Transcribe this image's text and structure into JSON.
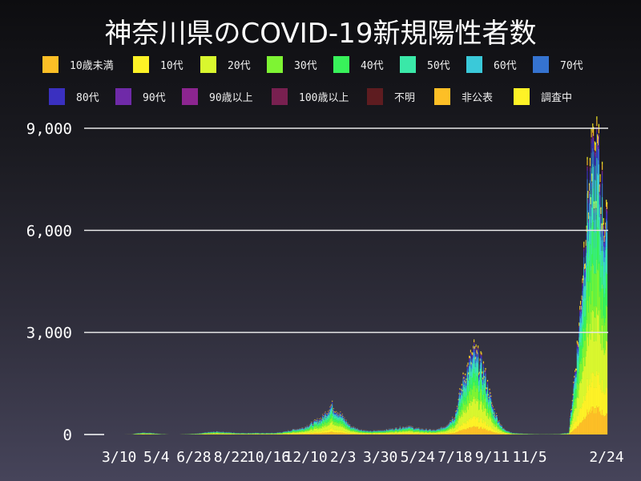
{
  "title": "神奈川県のCOVID-19新規陽性者数",
  "chart_data": {
    "type": "bar",
    "stacked": true,
    "title": "神奈川県のCOVID-19新規陽性者数",
    "xlabel": "",
    "ylabel": "",
    "ylim": [
      0,
      9000
    ],
    "yticks": [
      0,
      3000,
      6000,
      9000
    ],
    "ytick_labels": [
      "0",
      "3,000",
      "6,000",
      "9,000"
    ],
    "xrange": [
      "2020-01-16",
      "2022-02-24"
    ],
    "xticks": [
      "2020-03-10",
      "2020-05-04",
      "2020-06-28",
      "2020-08-22",
      "2020-10-16",
      "2020-12-10",
      "2021-02-03",
      "2021-03-30",
      "2021-05-24",
      "2021-07-18",
      "2021-09-11",
      "2021-11-05",
      "2022-02-24"
    ],
    "xtick_labels": [
      "3/10",
      "5/4",
      "6/28",
      "8/22",
      "10/16",
      "12/10",
      "2/3",
      "3/30",
      "5/24",
      "7/18",
      "9/11",
      "11/5",
      "2/24"
    ],
    "grid": true,
    "legend": "top",
    "x": [
      "2020-01-16",
      "2020-01-30",
      "2020-02-13",
      "2020-02-27",
      "2020-03-12",
      "2020-03-26",
      "2020-04-09",
      "2020-04-23",
      "2020-05-07",
      "2020-05-21",
      "2020-06-04",
      "2020-06-18",
      "2020-07-02",
      "2020-07-16",
      "2020-07-30",
      "2020-08-13",
      "2020-08-27",
      "2020-09-10",
      "2020-09-24",
      "2020-10-08",
      "2020-10-22",
      "2020-11-05",
      "2020-11-19",
      "2020-12-03",
      "2020-12-17",
      "2020-12-31",
      "2021-01-14",
      "2021-01-28",
      "2021-02-11",
      "2021-02-25",
      "2021-03-11",
      "2021-03-25",
      "2021-04-08",
      "2021-04-22",
      "2021-05-06",
      "2021-05-20",
      "2021-06-03",
      "2021-06-17",
      "2021-07-01",
      "2021-07-15",
      "2021-07-29",
      "2021-08-12",
      "2021-08-26",
      "2021-09-09",
      "2021-09-23",
      "2021-10-07",
      "2021-10-21",
      "2021-11-04",
      "2021-11-18",
      "2021-12-02",
      "2021-12-16",
      "2021-12-30",
      "2022-01-13",
      "2022-01-27",
      "2022-02-10",
      "2022-02-24"
    ],
    "totals": [
      0,
      0,
      1,
      3,
      5,
      8,
      60,
      50,
      15,
      5,
      5,
      15,
      30,
      70,
      90,
      70,
      50,
      45,
      50,
      45,
      50,
      80,
      150,
      200,
      350,
      500,
      900,
      600,
      250,
      150,
      100,
      120,
      150,
      200,
      250,
      180,
      150,
      130,
      250,
      600,
      1800,
      2500,
      2000,
      800,
      200,
      50,
      30,
      15,
      10,
      10,
      15,
      60,
      3000,
      7500,
      8500,
      6000
    ],
    "series": [
      {
        "name": "10歳未満",
        "color": "#fdbf26",
        "share": 0.09
      },
      {
        "name": "10代",
        "color": "#fef226",
        "share": 0.11
      },
      {
        "name": "20代",
        "color": "#d9f72e",
        "share": 0.2
      },
      {
        "name": "30代",
        "color": "#7ef433",
        "share": 0.15
      },
      {
        "name": "40代",
        "color": "#38f25a",
        "share": 0.14
      },
      {
        "name": "50代",
        "color": "#3ae8a8",
        "share": 0.11
      },
      {
        "name": "60代",
        "color": "#3ac9d9",
        "share": 0.07
      },
      {
        "name": "70代",
        "color": "#3573d0",
        "share": 0.05
      },
      {
        "name": "80代",
        "color": "#3a30c0",
        "share": 0.03
      },
      {
        "name": "90代",
        "color": "#6f2aa8",
        "share": 0.01
      },
      {
        "name": "90歳以上",
        "color": "#8c2590",
        "share": 0.005
      },
      {
        "name": "100歳以上",
        "color": "#782050",
        "share": 0.002
      },
      {
        "name": "不明",
        "color": "#5e1c20",
        "share": 0.003
      },
      {
        "name": "非公表",
        "color": "#fdbf26",
        "share": 0.02
      },
      {
        "name": "調査中",
        "color": "#fef226",
        "share": 0.01
      }
    ]
  }
}
